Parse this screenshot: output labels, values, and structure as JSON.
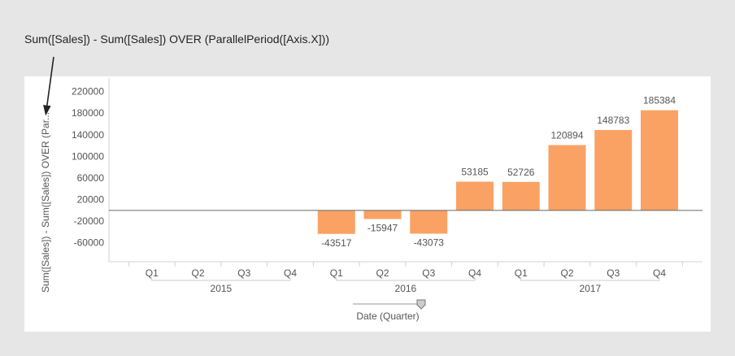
{
  "annotation": {
    "text": "Sum([Sales]) - Sum([Sales]) OVER (ParallelPeriod([Axis.X]))"
  },
  "chart_data": {
    "type": "bar",
    "title": "",
    "ylabel": "Sum([Sales]) - Sum([Sales]) OVER (Par...",
    "xlabel": "Date (Quarter)",
    "ylim": [
      -95000,
      245000
    ],
    "yticks": [
      220000,
      180000,
      140000,
      100000,
      60000,
      20000,
      -20000,
      -60000
    ],
    "years": [
      {
        "label": "2015",
        "quarters": [
          "Q1",
          "Q2",
          "Q3",
          "Q4"
        ]
      },
      {
        "label": "2016",
        "quarters": [
          "Q1",
          "Q2",
          "Q3",
          "Q4"
        ]
      },
      {
        "label": "2017",
        "quarters": [
          "Q1",
          "Q2",
          "Q3",
          "Q4"
        ]
      }
    ],
    "categories": [
      "2015 Q1",
      "2015 Q2",
      "2015 Q3",
      "2015 Q4",
      "2016 Q1",
      "2016 Q2",
      "2016 Q3",
      "2016 Q4",
      "2017 Q1",
      "2017 Q2",
      "2017 Q3",
      "2017 Q4"
    ],
    "values": [
      null,
      null,
      null,
      null,
      -43517,
      -15947,
      -43073,
      53185,
      52726,
      120894,
      148783,
      185384
    ],
    "bar_color": "#faa264",
    "grid": false,
    "legend": "none"
  }
}
